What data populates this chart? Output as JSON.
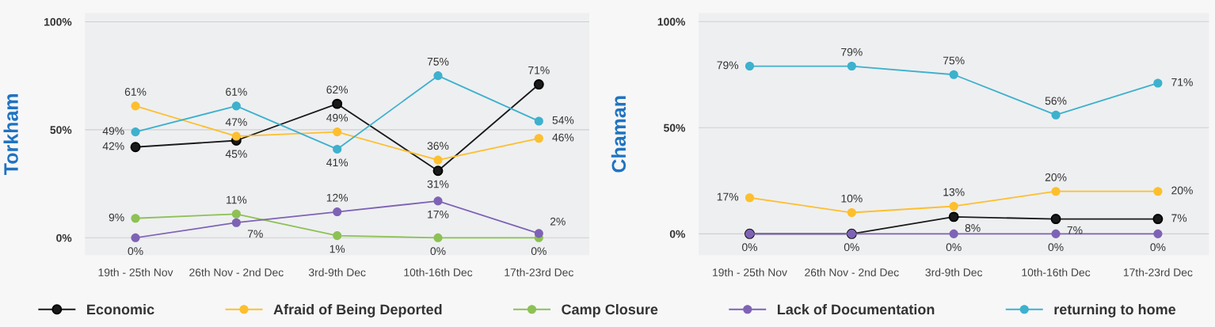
{
  "chart_data": [
    {
      "type": "line",
      "ylabel": "Torkham",
      "categories": [
        "19th - 25th Nov",
        "26th Nov - 2nd Dec",
        "3rd-9th Dec",
        "10th-16th Dec",
        "17th-23rd Dec"
      ],
      "ylim": [
        -8,
        104
      ],
      "yticks": [
        {
          "value": 0,
          "label": "0%"
        },
        {
          "value": 50,
          "label": "50%"
        },
        {
          "value": 100,
          "label": "100%"
        }
      ],
      "grid": "y",
      "marker": "circle",
      "legend": "bottom",
      "series": [
        {
          "name": "Economic",
          "color": "#1a1a1a",
          "values": [
            42,
            45,
            62,
            31,
            71
          ],
          "value_labels": [
            "42%",
            "45%",
            "62%",
            "31%",
            "71%"
          ]
        },
        {
          "name": "Afraid of Being Deported",
          "color": "#fdbf2d",
          "values": [
            61,
            47,
            49,
            36,
            46
          ],
          "value_labels": [
            "61%",
            "47%",
            "49%",
            "36%",
            "46%"
          ]
        },
        {
          "name": "Camp Closure",
          "color": "#8dc154",
          "values": [
            9,
            11,
            1,
            0,
            0
          ],
          "value_labels": [
            "9%",
            "11%",
            "1%",
            "0%",
            "0%"
          ]
        },
        {
          "name": "Lack of Documentation",
          "color": "#7e63b5",
          "values": [
            0,
            7,
            12,
            17,
            2
          ],
          "value_labels": [
            "0%",
            "7%",
            "12%",
            "17%",
            "2%"
          ]
        },
        {
          "name": "returning to home",
          "color": "#3db1cd",
          "values": [
            49,
            61,
            41,
            75,
            54
          ],
          "value_labels": [
            "49%",
            "61%",
            "41%",
            "75%",
            "54%"
          ]
        }
      ]
    },
    {
      "type": "line",
      "ylabel": "Chaman",
      "categories": [
        "19th - 25th Nov",
        "26th Nov - 2nd Dec",
        "3rd-9th Dec",
        "10th-16th Dec",
        "17th-23rd Dec"
      ],
      "ylim": [
        -10,
        104
      ],
      "yticks": [
        {
          "value": 0,
          "label": "0%"
        },
        {
          "value": 50,
          "label": "50%"
        },
        {
          "value": 100,
          "label": "100%"
        }
      ],
      "grid": "y",
      "marker": "circle",
      "series": [
        {
          "color": "#1a1a1a",
          "values": [
            0,
            0,
            8,
            7,
            7
          ],
          "value_labels": [
            null,
            null,
            "8%",
            "7%",
            "7%"
          ]
        },
        {
          "color": "#fdbf2d",
          "values": [
            17,
            10,
            13,
            20,
            20
          ],
          "value_labels": [
            "17%",
            "10%",
            "13%",
            "20%",
            "20%"
          ]
        },
        {
          "color": "#7e63b5",
          "values": [
            0,
            0,
            0,
            0,
            0
          ],
          "value_labels": [
            "0%",
            "0%",
            "0%",
            "0%",
            "0%"
          ]
        },
        {
          "color": "#3db1cd",
          "values": [
            79,
            79,
            75,
            56,
            71
          ],
          "value_labels": [
            "79%",
            "79%",
            "75%",
            "56%",
            "71%"
          ]
        }
      ]
    }
  ]
}
